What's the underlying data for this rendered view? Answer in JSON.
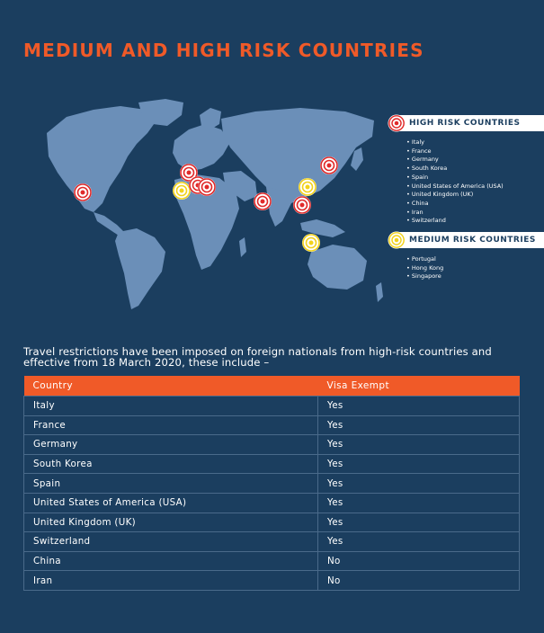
{
  "title": "MEDIUM AND HIGH RISK COUNTRIES",
  "colors": {
    "background": "#1b3e5f",
    "accent": "#f05a28",
    "land": "#6b8fb8",
    "high_risk_marker": "#e02a2a",
    "medium_risk_marker": "#f2d21b"
  },
  "legend": {
    "high": {
      "icon": "red-target-icon",
      "label": "HIGH RISK COUNTRIES",
      "items": [
        "Italy",
        "France",
        "Germany",
        "South Korea",
        "Spain",
        "United States of America (USA)",
        "United Kingdom (UK)",
        "China",
        "Iran",
        "Switzerland"
      ]
    },
    "medium": {
      "icon": "yellow-target-icon",
      "label": "MEDIUM RISK COUNTRIES",
      "items": [
        "Portugal",
        "Hong Kong",
        "Singapore"
      ]
    }
  },
  "intro": "Travel restrictions have been imposed on foreign nationals from high-risk countries and effective from 18 March 2020, these include –",
  "table": {
    "headers": [
      "Country",
      "Visa Exempt"
    ],
    "rows": [
      [
        "Italy",
        "Yes"
      ],
      [
        "France",
        "Yes"
      ],
      [
        "Germany",
        "Yes"
      ],
      [
        "South Korea",
        "Yes"
      ],
      [
        "Spain",
        "Yes"
      ],
      [
        "United States of America (USA)",
        "Yes"
      ],
      [
        "United Kingdom (UK)",
        "Yes"
      ],
      [
        "Switzerland",
        "Yes"
      ],
      [
        "China",
        "No"
      ],
      [
        "Iran",
        "No"
      ]
    ]
  }
}
